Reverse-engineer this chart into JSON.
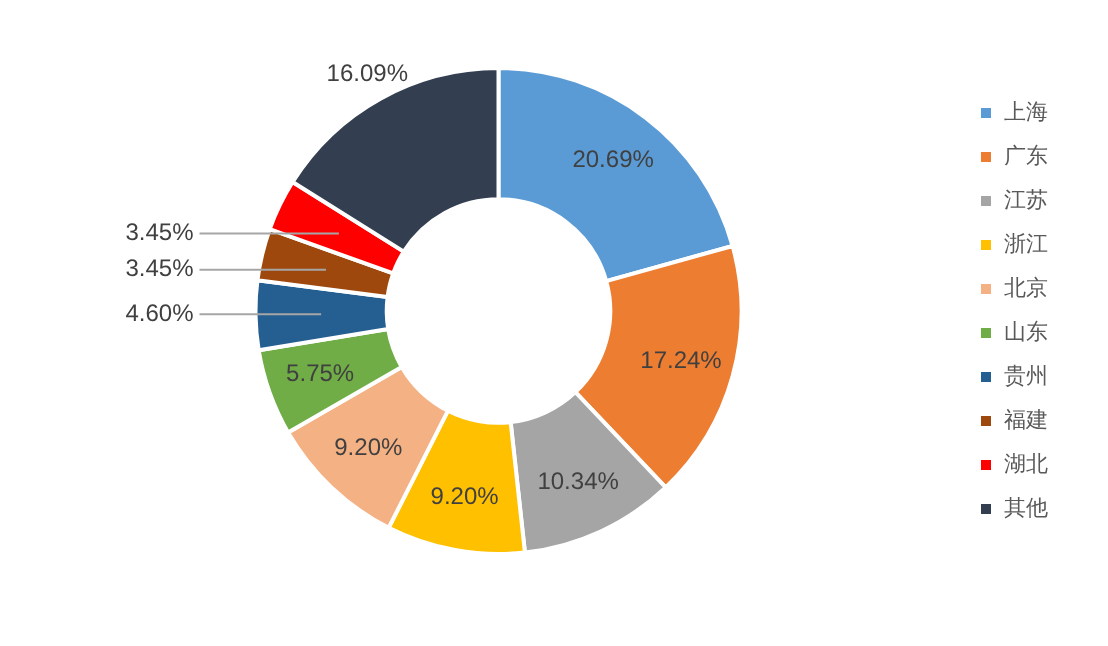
{
  "chart_data": {
    "type": "donut",
    "categories": [
      "上海",
      "广东",
      "江苏",
      "浙江",
      "北京",
      "山东",
      "贵州",
      "福建",
      "湖北",
      "其他"
    ],
    "values": [
      20.69,
      17.24,
      10.34,
      9.2,
      9.2,
      5.75,
      4.6,
      3.45,
      3.45,
      16.09
    ],
    "value_labels": [
      "20.69%",
      "17.24%",
      "10.34%",
      "9.20%",
      "9.20%",
      "5.75%",
      "4.60%",
      "3.45%",
      "3.45%",
      "16.09%"
    ],
    "colors": [
      "#5b9bd5",
      "#ed7d31",
      "#a5a5a5",
      "#ffc000",
      "#f4b183",
      "#70ad47",
      "#255e91",
      "#9e480e",
      "#ff0000",
      "#333f50"
    ],
    "legend": "right"
  }
}
